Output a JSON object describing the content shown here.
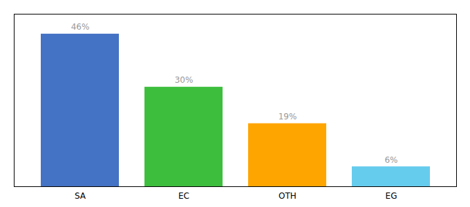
{
  "chart_data": {
    "type": "bar",
    "categories": [
      "SA",
      "EC",
      "OTH",
      "EG"
    ],
    "values": [
      46,
      30,
      19,
      6
    ],
    "value_labels": [
      "46%",
      "30%",
      "19%",
      "6%"
    ],
    "colors": [
      "#4472C4",
      "#3DBE3D",
      "#FFA500",
      "#66CCEE"
    ],
    "ylim": [
      0,
      52
    ],
    "data_labels": true,
    "tick_labels": "x",
    "grid": false
  }
}
